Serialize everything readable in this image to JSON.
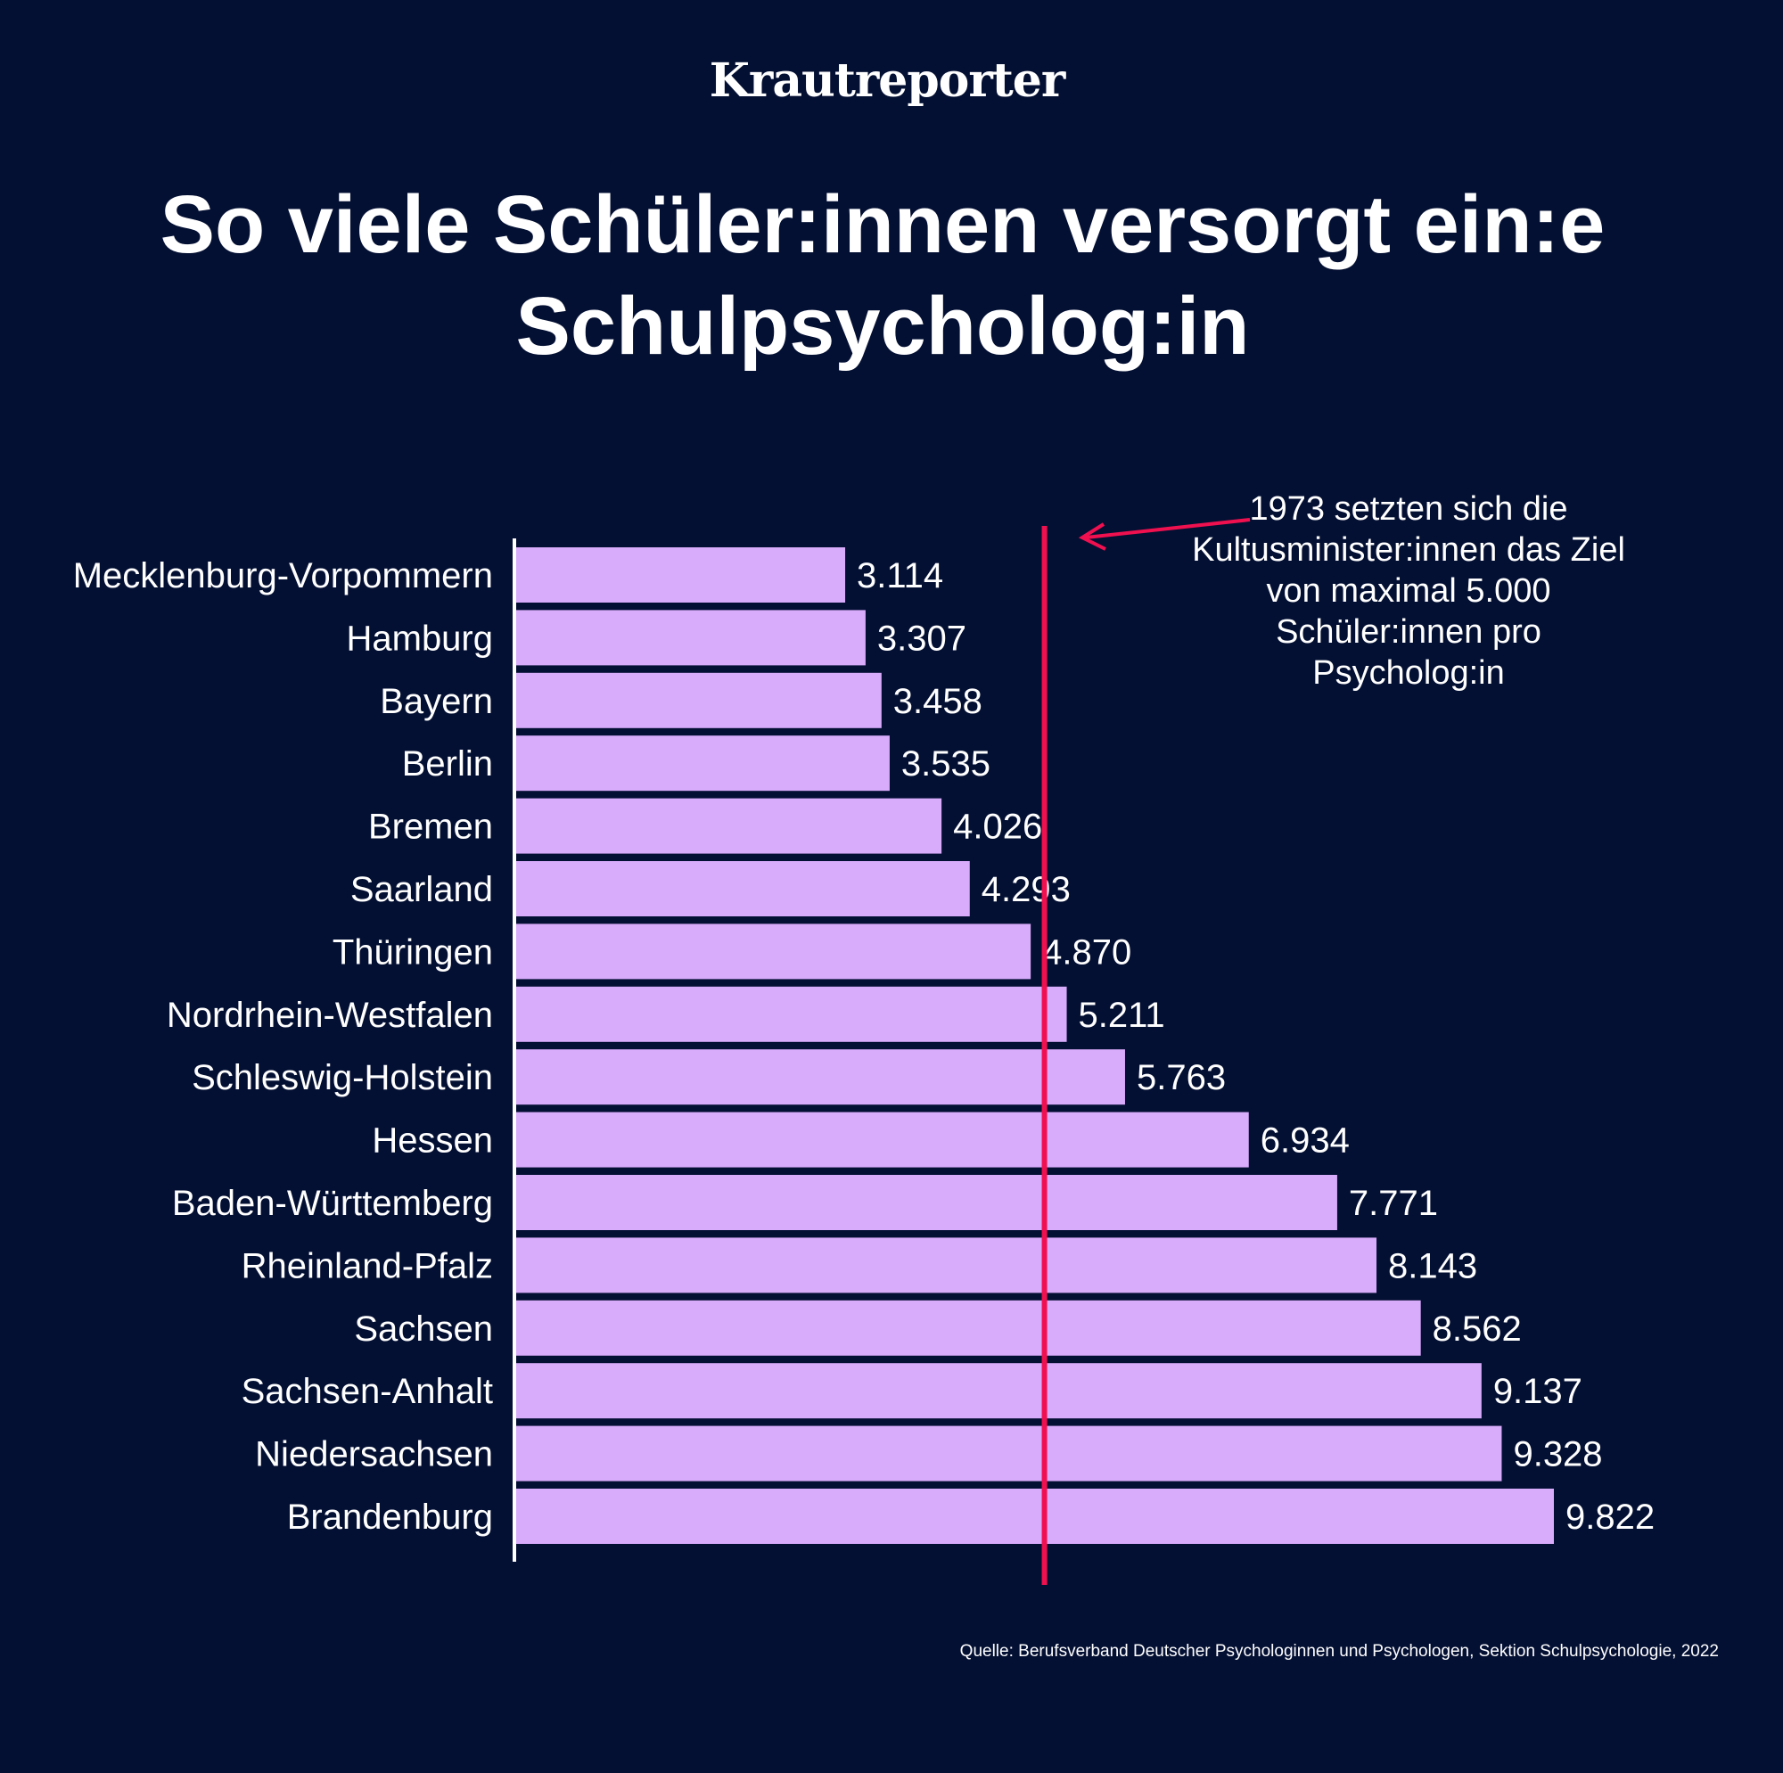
{
  "brand": "Krautreporter",
  "colors": {
    "background": "#041033",
    "bar": "#d8abfb",
    "reference_line": "#f0104f",
    "text": "#ffffff"
  },
  "chart_data": {
    "type": "bar",
    "orientation": "horizontal",
    "title": "So viele Schüler:innen versorgt ein:e Schulpsycholog:in",
    "categories": [
      "Mecklenburg-Vorpommern",
      "Hamburg",
      "Bayern",
      "Berlin",
      "Bremen",
      "Saarland",
      "Thüringen",
      "Nordrhein-Westfalen",
      "Schleswig-Holstein",
      "Hessen",
      "Baden-Württemberg",
      "Rheinland-Pfalz",
      "Sachsen",
      "Sachsen-Anhalt",
      "Niedersachsen",
      "Brandenburg"
    ],
    "values": [
      3114,
      3307,
      3458,
      3535,
      4026,
      4293,
      4870,
      5211,
      5763,
      6934,
      7771,
      8143,
      8562,
      9137,
      9328,
      9822
    ],
    "value_labels": [
      "3.114",
      "3.307",
      "3.458",
      "3.535",
      "4.026",
      "4.293",
      "4.870",
      "5.211",
      "5.763",
      "6.934",
      "7.771",
      "8.143",
      "8.562",
      "9.137",
      "9.328",
      "9.822"
    ],
    "xlim": [
      0,
      9822
    ],
    "reference_line": {
      "value": 5000,
      "annotation": "1973 setzten sich die Kultusminister:innen das Ziel von maximal 5.000 Schüler:innen pro Psycholog:in"
    },
    "source": "Quelle: Berufsverband Deutscher Psychologinnen und Psychologen, Sektion Schulpsychologie, 2022"
  }
}
